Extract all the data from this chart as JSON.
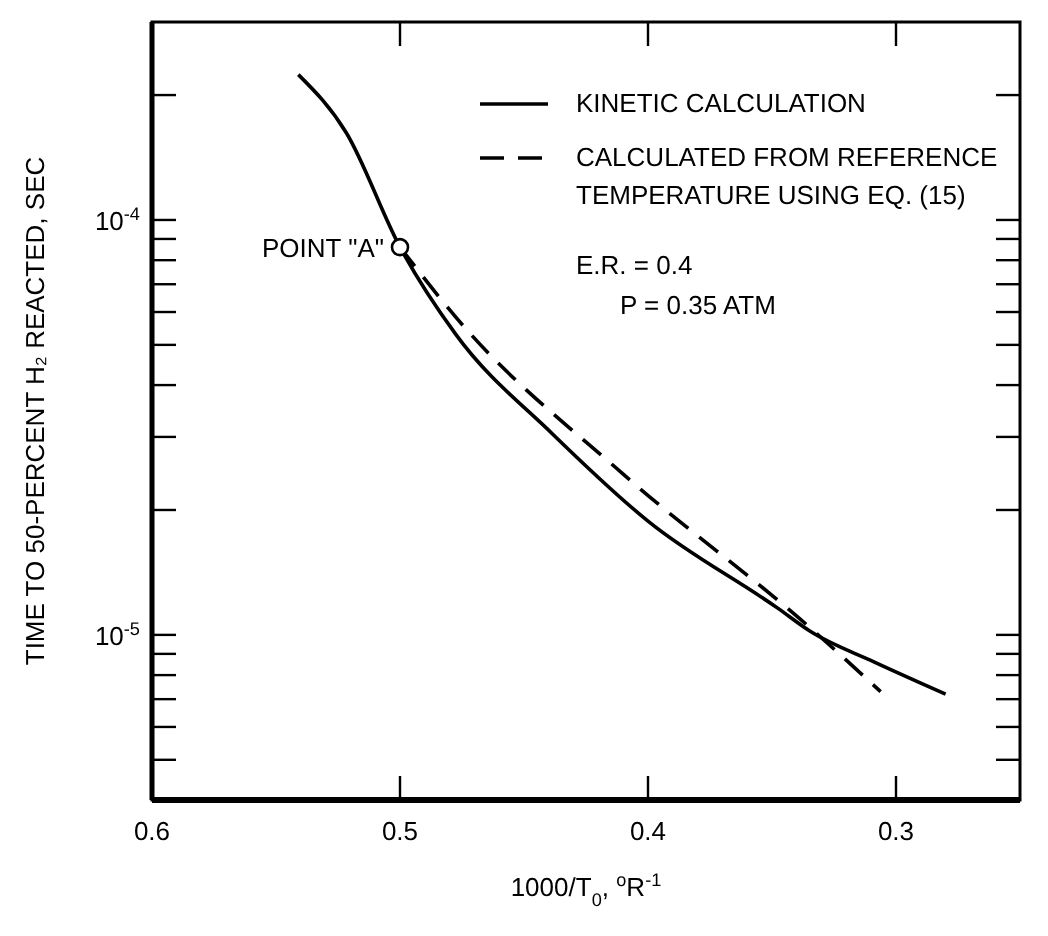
{
  "chart_data": {
    "type": "line",
    "xlabel": "1000/T$_{0}$, $^{o}$R$^{-1}$",
    "ylabel": "TIME TO 50-PERCENT H₂ REACTED, SEC",
    "log": "y",
    "grid": false,
    "legend": "top right",
    "xlim": [
      0.6,
      0.25
    ],
    "xticks": [
      0.6,
      0.5,
      0.4,
      0.3
    ],
    "ylim": [
      4e-06,
      0.0003
    ],
    "yticks": [
      {
        "value": 4e-06,
        "label": null
      },
      {
        "value": 5e-06,
        "label": null
      },
      {
        "value": 6e-06,
        "label": null
      },
      {
        "value": 7e-06,
        "label": null
      },
      {
        "value": 8e-06,
        "label": null
      },
      {
        "value": 9e-06,
        "label": null
      },
      {
        "value": 1e-05,
        "label": "10$^{-5}$"
      },
      {
        "value": 2e-05,
        "label": null
      },
      {
        "value": 3e-05,
        "label": null
      },
      {
        "value": 4e-05,
        "label": null
      },
      {
        "value": 5e-05,
        "label": null
      },
      {
        "value": 6e-05,
        "label": null
      },
      {
        "value": 7e-05,
        "label": null
      },
      {
        "value": 8e-05,
        "label": null
      },
      {
        "value": 9e-05,
        "label": null
      },
      {
        "value": 0.0001,
        "label": "10$^{-4}$"
      },
      {
        "value": 0.0002,
        "label": null
      }
    ],
    "series": [
      {
        "name": "KINETIC CALCULATION",
        "color": "#000000",
        "line_style": "solid",
        "marker": "none",
        "x": [
          0.541,
          0.5216,
          0.5,
          0.4775,
          0.4385,
          0.4,
          0.3477,
          0.3346,
          0.3087,
          0.28
        ],
        "values": [
          0.000224,
          0.000162,
          8.6e-05,
          5.3e-05,
          3.05e-05,
          1.88e-05,
          1.16e-05,
          1.02e-05,
          8.6e-06,
          7.2e-06
        ]
      },
      {
        "name": "CALCULATED FROM REFERENCE TEMPERATURE USING EQ. (15)",
        "color": "#000000",
        "line_style": "dashed",
        "marker": "none",
        "x": [
          0.5,
          0.4775,
          0.41,
          0.3346,
          0.3062
        ],
        "values": [
          8.6e-05,
          5.83e-05,
          2.44e-05,
          1.04e-05,
          7.3e-06
        ]
      },
      {
        "type": "scatter",
        "color": "#000000",
        "marker": "circle",
        "x": [
          0.5
        ],
        "values": [
          8.6e-05
        ]
      }
    ],
    "annotations": [
      {
        "text": "POINT \"A\"",
        "x": 0.5,
        "y": 8.6e-05
      },
      "E.R. = 0.4",
      "P = 0.35 ATM"
    ]
  }
}
